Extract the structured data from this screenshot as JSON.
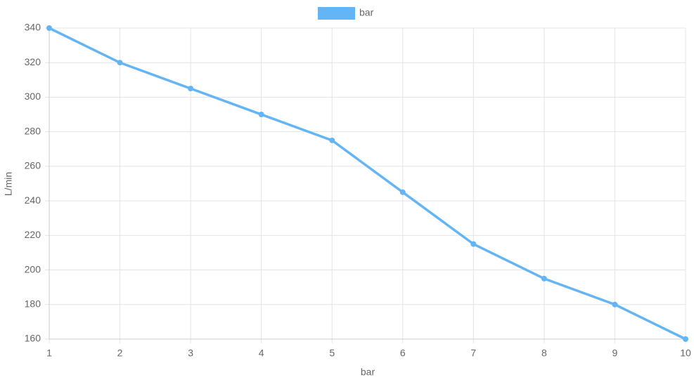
{
  "chart_data": {
    "type": "line",
    "legend_label": "bar",
    "x_label": "bar",
    "y_label": "L/min",
    "x": [
      1,
      2,
      3,
      4,
      5,
      6,
      7,
      8,
      9,
      10
    ],
    "series": [
      {
        "name": "bar",
        "color": "#64b5f6",
        "values": [
          340,
          320,
          305,
          290,
          275,
          245,
          215,
          195,
          180,
          160
        ]
      }
    ],
    "xlim": [
      1,
      10
    ],
    "xticks": [
      1,
      2,
      3,
      4,
      5,
      6,
      7,
      8,
      9,
      10
    ],
    "ylim": [
      160,
      340
    ],
    "yticks": [
      160,
      180,
      200,
      220,
      240,
      260,
      280,
      300,
      320,
      340
    ],
    "grid": true,
    "legend": "top"
  }
}
